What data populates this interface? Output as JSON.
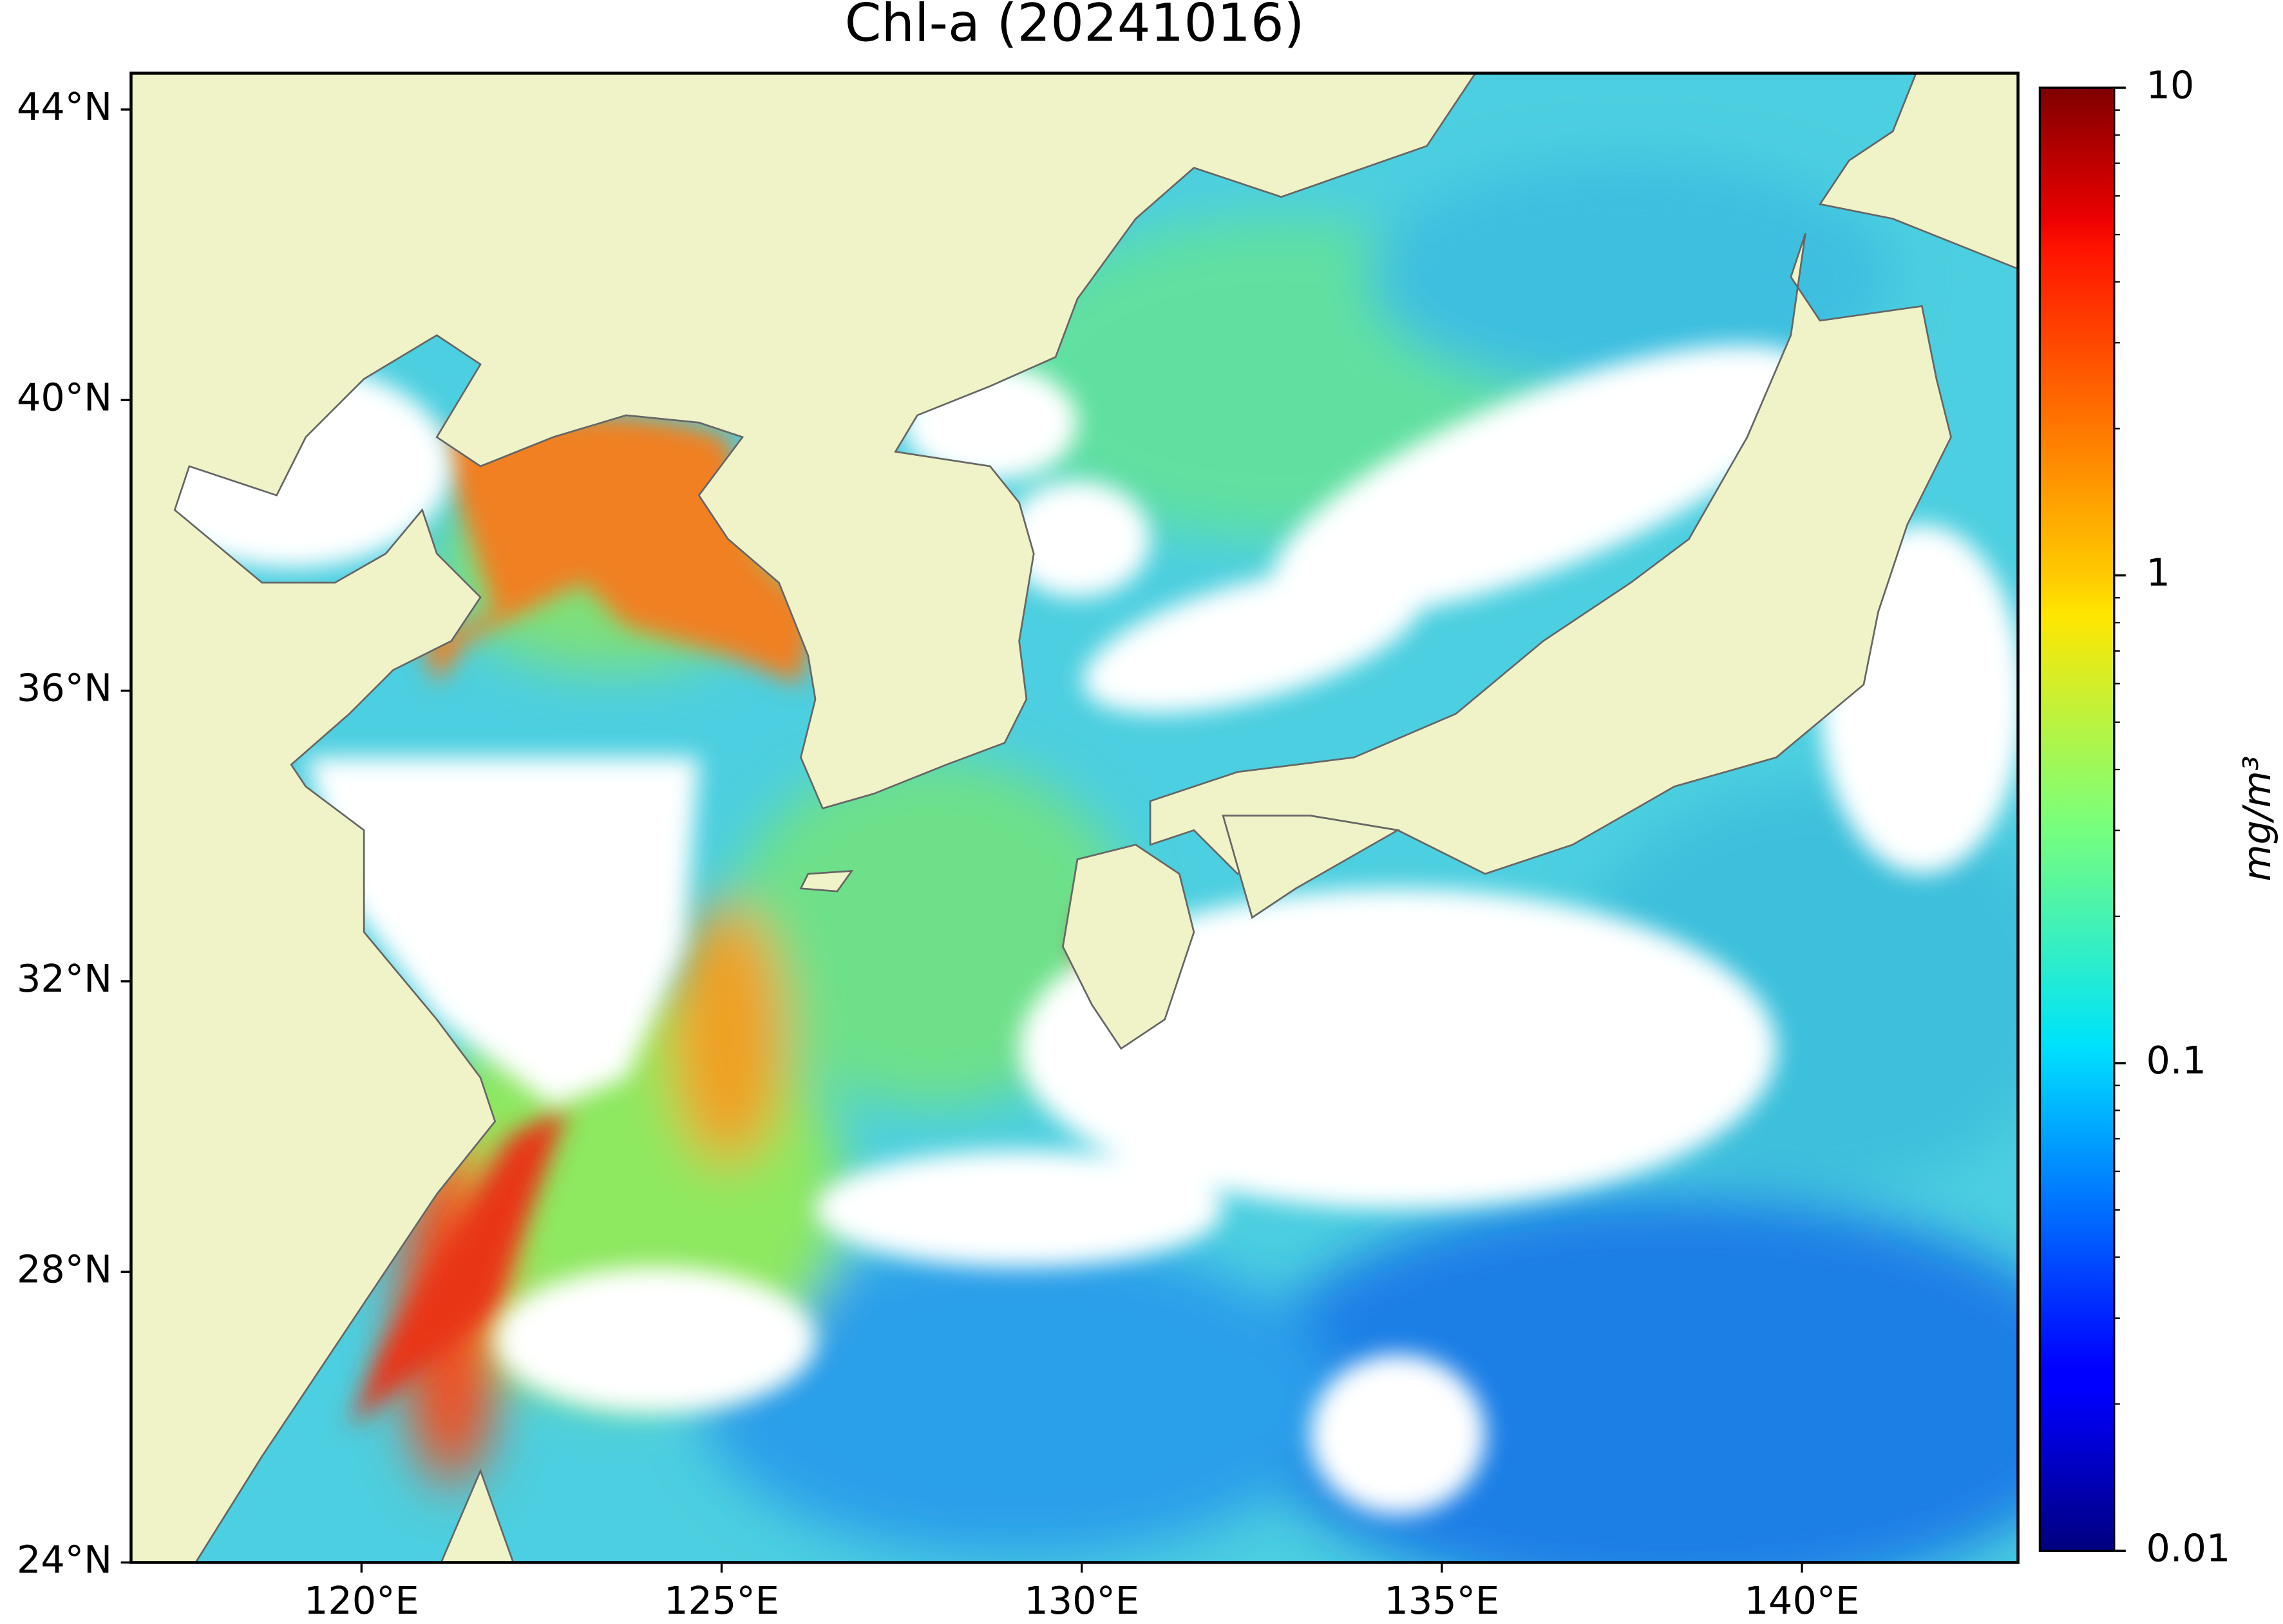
{
  "title": "Chl-a (20241016)",
  "map": {
    "lon_lim": [
      116.8,
      143
    ],
    "lat_lim": [
      24,
      44.5
    ],
    "lat_ticks": [
      {
        "value": 44,
        "label": "44°N"
      },
      {
        "value": 40,
        "label": "40°N"
      },
      {
        "value": 36,
        "label": "36°N"
      },
      {
        "value": 32,
        "label": "32°N"
      },
      {
        "value": 28,
        "label": "28°N"
      },
      {
        "value": 24,
        "label": "24°N"
      }
    ],
    "lon_ticks": [
      {
        "value": 120,
        "label": "120°E"
      },
      {
        "value": 125,
        "label": "125°E"
      },
      {
        "value": 130,
        "label": "130°E"
      },
      {
        "value": 135,
        "label": "135°E"
      },
      {
        "value": 140,
        "label": "140°E"
      }
    ]
  },
  "colorbar": {
    "label": "mg/m³",
    "scale": "log",
    "colormap": "jet",
    "lim": [
      0.01,
      10
    ],
    "ticks": [
      0.01,
      0.1,
      1,
      10
    ]
  }
}
